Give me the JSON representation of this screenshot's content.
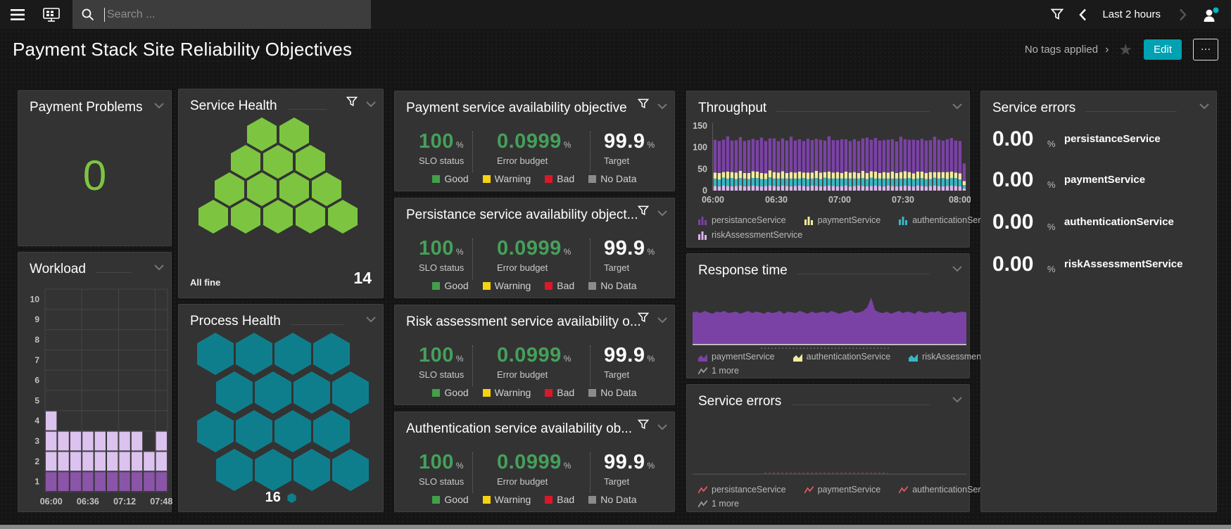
{
  "topbar": {
    "search_placeholder": "Search ...",
    "time_range": "Last 2 hours"
  },
  "titlebar": {
    "title": "Payment Stack Site Reliability Objectives",
    "tags_label": "No tags applied",
    "edit_label": "Edit",
    "more_label": "…"
  },
  "colors": {
    "accent_teal": "#00a1b2",
    "healthy_green": "#7dc540",
    "process_teal": "#0f7e8c",
    "slo_green": "#45a05a",
    "good": "#42a04a",
    "warning": "#f5d30f",
    "bad": "#dc172a",
    "no_data": "#8b8b8b",
    "purple": "#7b42a5",
    "pale_yellow": "#f2eb9f",
    "cyan": "#36b8c4",
    "lavender": "#d9b6ea",
    "workload_dark": "#8a55a8",
    "workload_light": "#dcc2ee",
    "error_red": "#dc5860",
    "more_grey": "#9a9a9a"
  },
  "tiles": {
    "payment_problems": {
      "title": "Payment Problems",
      "value": "0"
    },
    "workload": {
      "title": "Workload"
    },
    "service_health": {
      "title": "Service Health",
      "status": "All fine",
      "count": "14",
      "hex_rows": [
        2,
        3,
        4,
        5
      ]
    },
    "process_health": {
      "title": "Process Health",
      "count": "16",
      "hex_rows": [
        4,
        4,
        4,
        4
      ]
    },
    "slo": {
      "metric_labels": {
        "slo_status": "SLO status",
        "error_budget": "Error budget",
        "target": "Target"
      },
      "unit": "%",
      "legend": [
        {
          "label": "Good",
          "color": "#42a04a"
        },
        {
          "label": "Warning",
          "color": "#f5d30f"
        },
        {
          "label": "Bad",
          "color": "#dc172a"
        },
        {
          "label": "No Data",
          "color": "#8b8b8b"
        }
      ],
      "tiles": [
        {
          "title": "Payment service availability objective",
          "slo_status": "100",
          "error_budget": "0.0999",
          "target": "99.9"
        },
        {
          "title": "Persistance service availability object...",
          "slo_status": "100",
          "error_budget": "0.0999",
          "target": "99.9"
        },
        {
          "title": "Risk assessment service availability o...",
          "slo_status": "100",
          "error_budget": "0.0999",
          "target": "99.9"
        },
        {
          "title": "Authentication service availability ob...",
          "slo_status": "100",
          "error_budget": "0.0999",
          "target": "99.9"
        }
      ]
    },
    "throughput": {
      "title": "Throughput",
      "legend": [
        {
          "name": "persistanceService",
          "color": "#7b42a5",
          "icon": "bars"
        },
        {
          "name": "paymentService",
          "color": "#f2eb9f",
          "icon": "bars"
        },
        {
          "name": "authenticationService",
          "color": "#36b8c4",
          "icon": "bars"
        },
        {
          "name": "riskAssessmentService",
          "color": "#d9b6ea",
          "icon": "bars"
        }
      ]
    },
    "response_time": {
      "title": "Response time",
      "legend": [
        {
          "name": "paymentService",
          "color": "#7b42a5",
          "icon": "area"
        },
        {
          "name": "authenticationService",
          "color": "#f2eb9f",
          "icon": "area"
        },
        {
          "name": "riskAssessmentService",
          "color": "#36b8c4",
          "icon": "area"
        }
      ],
      "more_label": "1 more"
    },
    "service_errors_chart": {
      "title": "Service errors",
      "legend": [
        {
          "name": "persistanceService",
          "color": "#dc5860",
          "icon": "line"
        },
        {
          "name": "paymentService",
          "color": "#dc5860",
          "icon": "line"
        },
        {
          "name": "authenticationService",
          "color": "#dc5860",
          "icon": "line"
        }
      ],
      "more_label": "1 more"
    },
    "service_errors_list": {
      "title": "Service errors",
      "rows": [
        {
          "value": "0.00",
          "unit": "%",
          "name": "persistanceService"
        },
        {
          "value": "0.00",
          "unit": "%",
          "name": "paymentService"
        },
        {
          "value": "0.00",
          "unit": "%",
          "name": "authenticationService"
        },
        {
          "value": "0.00",
          "unit": "%",
          "name": "riskAssessmentService"
        }
      ]
    }
  },
  "chart_data": [
    {
      "id": "workload",
      "type": "heatmap",
      "title": "Workload",
      "y_ticks": [
        10,
        9,
        8,
        7,
        6,
        5,
        4,
        3,
        2,
        1
      ],
      "x_ticks": [
        "06:00",
        "06:36",
        "07:12",
        "07:48"
      ],
      "x_tick_columns": [
        0,
        3,
        6,
        9
      ],
      "column_heights": [
        4,
        3,
        3,
        3,
        3,
        3,
        3,
        3,
        2,
        3
      ],
      "base_row_color": "#8a55a8",
      "upper_row_color": "#dcc2ee",
      "ylim": [
        0,
        10
      ],
      "grid": true
    },
    {
      "id": "throughput",
      "type": "bar",
      "title": "Throughput",
      "x_ticks": [
        "06:00",
        "06:30",
        "07:00",
        "07:30",
        "08:00"
      ],
      "y_ticks": [
        0,
        50,
        100,
        150
      ],
      "ylim": [
        0,
        150
      ],
      "legend_position": "bottom",
      "series": [
        {
          "name": "riskAssessmentService",
          "color": "#d9b6ea",
          "values": [
            11,
            10,
            12,
            11,
            10,
            11,
            12,
            10,
            11,
            12,
            11,
            10,
            11,
            12,
            11,
            10,
            12,
            11,
            10,
            11,
            12,
            11,
            10,
            12,
            11,
            10,
            11,
            12,
            11,
            10,
            11,
            12,
            10,
            11,
            12,
            11,
            10,
            11,
            12,
            11,
            10,
            12,
            11,
            10,
            11,
            12,
            11,
            10,
            12,
            11,
            10,
            11,
            12,
            11,
            10,
            11,
            12,
            11,
            10,
            5
          ]
        },
        {
          "name": "authenticationService",
          "color": "#36b8c4",
          "values": [
            17,
            16,
            18,
            17,
            19,
            16,
            17,
            18,
            16,
            17,
            18,
            17,
            16,
            19,
            17,
            18,
            16,
            17,
            18,
            17,
            16,
            18,
            17,
            16,
            18,
            17,
            19,
            16,
            17,
            18,
            17,
            16,
            18,
            17,
            16,
            18,
            17,
            19,
            16,
            17,
            18,
            16,
            17,
            18,
            17,
            16,
            18,
            17,
            16,
            18,
            17,
            16,
            18,
            17,
            19,
            16,
            17,
            18,
            16,
            8
          ]
        },
        {
          "name": "paymentService",
          "color": "#f2eb9f",
          "values": [
            14,
            15,
            13,
            16,
            14,
            15,
            17,
            13,
            14,
            16,
            15,
            14,
            13,
            16,
            15,
            14,
            17,
            13,
            15,
            14,
            16,
            13,
            15,
            14,
            17,
            15,
            13,
            16,
            14,
            15,
            13,
            16,
            14,
            15,
            13,
            17,
            14,
            15,
            16,
            13,
            15,
            14,
            16,
            13,
            15,
            17,
            14,
            13,
            16,
            15,
            14,
            16,
            13,
            15,
            14,
            16,
            15,
            13,
            14,
            9
          ]
        },
        {
          "name": "persistanceService",
          "color": "#7b42a5",
          "values": [
            76,
            74,
            75,
            82,
            73,
            75,
            78,
            74,
            76,
            75,
            73,
            82,
            75,
            74,
            78,
            73,
            76,
            75,
            82,
            74,
            75,
            73,
            78,
            75,
            74,
            76,
            73,
            82,
            75,
            74,
            78,
            75,
            73,
            76,
            74,
            75,
            82,
            73,
            78,
            75,
            74,
            76,
            75,
            73,
            82,
            74,
            75,
            78,
            73,
            76,
            75,
            74,
            82,
            75,
            73,
            76,
            78,
            74,
            75,
            41
          ]
        }
      ]
    },
    {
      "id": "response_time",
      "type": "area",
      "title": "Response time",
      "series": [
        {
          "name": "paymentService",
          "color": "#7b42a5",
          "values": [
            45,
            46,
            44,
            47,
            45,
            43,
            46,
            45,
            47,
            44,
            45,
            46,
            43,
            45,
            47,
            44,
            46,
            45,
            43,
            46,
            44,
            45,
            47,
            43,
            46,
            45,
            44,
            47,
            45,
            43,
            46,
            44,
            45,
            46,
            44,
            47,
            45,
            43,
            45,
            46,
            48,
            44,
            45,
            47,
            52,
            66,
            48,
            45,
            44,
            46,
            43,
            45,
            47,
            44,
            46,
            45,
            43,
            47,
            45,
            44,
            46,
            45,
            47,
            43,
            45,
            46,
            44,
            45,
            46,
            45
          ]
        }
      ],
      "grid": false
    },
    {
      "id": "service_errors_trend",
      "type": "line",
      "title": "Service errors",
      "series": [],
      "note": "no data plotted; flat zero baseline with dashed threshold"
    }
  ]
}
